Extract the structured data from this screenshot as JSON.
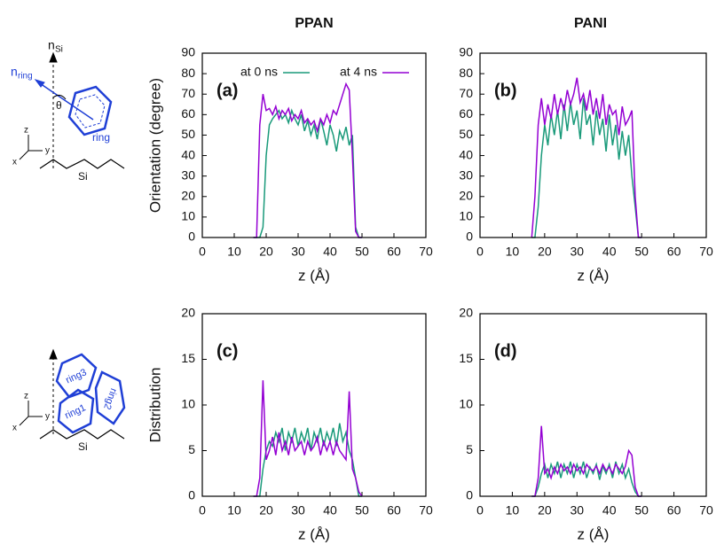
{
  "chart_data": [
    {
      "type": "line",
      "title": "PPAN",
      "panel_label": "(a)",
      "ylabel": "Orientation (degree)",
      "xlabel": "z (Å)",
      "legend": "top",
      "x": [
        16,
        17,
        18,
        19,
        20,
        21,
        22,
        23,
        24,
        25,
        26,
        27,
        28,
        29,
        30,
        31,
        32,
        33,
        34,
        35,
        36,
        37,
        38,
        39,
        40,
        41,
        42,
        43,
        44,
        45,
        46,
        47,
        48,
        49,
        50
      ],
      "series": [
        {
          "name": "at 0 ns",
          "color": "#1a9a7a",
          "values": [
            0,
            0,
            0,
            5,
            40,
            55,
            58,
            60,
            62,
            58,
            60,
            56,
            62,
            58,
            55,
            60,
            52,
            57,
            50,
            55,
            48,
            58,
            52,
            45,
            55,
            50,
            42,
            52,
            48,
            54,
            45,
            50,
            5,
            0,
            0
          ]
        },
        {
          "name": "at 4 ns",
          "color": "#9400d3",
          "values": [
            0,
            0,
            55,
            70,
            62,
            63,
            60,
            64,
            58,
            62,
            60,
            63,
            57,
            60,
            58,
            62,
            56,
            58,
            55,
            57,
            52,
            58,
            55,
            60,
            56,
            62,
            60,
            65,
            70,
            75,
            72,
            40,
            3,
            0,
            0
          ]
        }
      ],
      "xlim": [
        0,
        70
      ],
      "xticks": [
        0,
        10,
        20,
        30,
        40,
        50,
        60,
        70
      ],
      "ylim": [
        0,
        90
      ],
      "yticks": [
        0,
        10,
        20,
        30,
        40,
        50,
        60,
        70,
        80,
        90
      ]
    },
    {
      "type": "line",
      "title": "PANI",
      "panel_label": "(b)",
      "xlabel": "z (Å)",
      "x": [
        16,
        17,
        18,
        19,
        20,
        21,
        22,
        23,
        24,
        25,
        26,
        27,
        28,
        29,
        30,
        31,
        32,
        33,
        34,
        35,
        36,
        37,
        38,
        39,
        40,
        41,
        42,
        43,
        44,
        45,
        46,
        47,
        48,
        49,
        50
      ],
      "series": [
        {
          "color": "#1a9a7a",
          "values": [
            0,
            0,
            15,
            40,
            55,
            45,
            60,
            50,
            62,
            48,
            65,
            52,
            66,
            55,
            62,
            48,
            68,
            55,
            60,
            45,
            62,
            50,
            58,
            42,
            60,
            45,
            55,
            38,
            52,
            40,
            50,
            30,
            15,
            0,
            0
          ]
        },
        {
          "color": "#9400d3",
          "values": [
            0,
            20,
            55,
            68,
            55,
            65,
            58,
            70,
            60,
            68,
            62,
            72,
            65,
            70,
            78,
            66,
            70,
            62,
            72,
            60,
            68,
            58,
            70,
            55,
            65,
            60,
            62,
            50,
            64,
            55,
            58,
            62,
            20,
            0,
            0
          ]
        }
      ],
      "xlim": [
        0,
        70
      ],
      "xticks": [
        0,
        10,
        20,
        30,
        40,
        50,
        60,
        70
      ],
      "ylim": [
        0,
        90
      ],
      "yticks": [
        0,
        10,
        20,
        30,
        40,
        50,
        60,
        70,
        80,
        90
      ]
    },
    {
      "type": "line",
      "panel_label": "(c)",
      "ylabel": "Distribution",
      "xlabel": "z (Å)",
      "x": [
        16,
        17,
        18,
        19,
        20,
        21,
        22,
        23,
        24,
        25,
        26,
        27,
        28,
        29,
        30,
        31,
        32,
        33,
        34,
        35,
        36,
        37,
        38,
        39,
        40,
        41,
        42,
        43,
        44,
        45,
        46,
        47,
        48,
        49,
        50
      ],
      "series": [
        {
          "color": "#1a9a7a",
          "values": [
            0,
            0,
            0,
            3,
            5,
            6,
            5.5,
            7,
            6,
            7.5,
            5,
            7,
            6,
            7.5,
            5.5,
            7,
            6,
            7.5,
            5,
            7,
            6,
            7.5,
            5.5,
            7,
            6,
            7.5,
            5.5,
            8,
            6,
            7,
            5,
            4,
            2,
            0,
            0
          ]
        },
        {
          "color": "#9400d3",
          "values": [
            0,
            0,
            2,
            12.7,
            4,
            5,
            6.5,
            4.5,
            7,
            5,
            6,
            4.5,
            6.5,
            5,
            5.5,
            6,
            4.5,
            6,
            5,
            5.5,
            6.5,
            4.5,
            6,
            5,
            6,
            4.5,
            6,
            5,
            4.5,
            4,
            11.5,
            3,
            2,
            0.5,
            0
          ]
        }
      ],
      "xlim": [
        0,
        70
      ],
      "xticks": [
        0,
        10,
        20,
        30,
        40,
        50,
        60,
        70
      ],
      "ylim": [
        0,
        20
      ],
      "yticks": [
        0,
        5,
        10,
        15,
        20
      ]
    },
    {
      "type": "line",
      "panel_label": "(d)",
      "xlabel": "z (Å)",
      "x": [
        16,
        17,
        18,
        19,
        20,
        21,
        22,
        23,
        24,
        25,
        26,
        27,
        28,
        29,
        30,
        31,
        32,
        33,
        34,
        35,
        36,
        37,
        38,
        39,
        40,
        41,
        42,
        43,
        44,
        45,
        46,
        47,
        48,
        49,
        50
      ],
      "series": [
        {
          "color": "#1a9a7a",
          "values": [
            0,
            0,
            1,
            2.5,
            3.5,
            2,
            3.5,
            2.5,
            3.8,
            2,
            3.5,
            2.5,
            3.8,
            2,
            3.5,
            2.5,
            3.8,
            2,
            3.2,
            2.5,
            3.5,
            1.8,
            3.3,
            2.5,
            3.5,
            2,
            3.8,
            2.5,
            3.5,
            2,
            3,
            1.5,
            0.5,
            0,
            0
          ]
        },
        {
          "color": "#9400d3",
          "values": [
            0,
            0,
            2,
            7.7,
            2.5,
            3,
            2,
            3.2,
            2.5,
            3.5,
            2.8,
            3.2,
            2.5,
            3.5,
            2.8,
            3.2,
            2.5,
            3.5,
            3,
            2.8,
            3.3,
            2.5,
            3.5,
            2.8,
            3.2,
            2.5,
            3.5,
            3,
            2.5,
            3.3,
            5,
            4.5,
            1,
            0,
            0
          ]
        }
      ],
      "xlim": [
        0,
        70
      ],
      "xticks": [
        0,
        10,
        20,
        30,
        40,
        50,
        60,
        70
      ],
      "ylim": [
        0,
        20
      ],
      "yticks": [
        0,
        5,
        10,
        15,
        20
      ]
    }
  ],
  "schematics": {
    "top": {
      "normal": "n",
      "normal_sub": "Si",
      "ring_normal": "n",
      "ring_normal_sub": "ring",
      "angle": "θ",
      "ring": "ring",
      "axes": [
        "z",
        "y",
        "x"
      ],
      "substrate": "Si"
    },
    "bottom": {
      "rings": [
        "ring3",
        "ring1",
        "ring2"
      ],
      "axes": [
        "z",
        "y",
        "x"
      ],
      "substrate": "Si"
    }
  }
}
